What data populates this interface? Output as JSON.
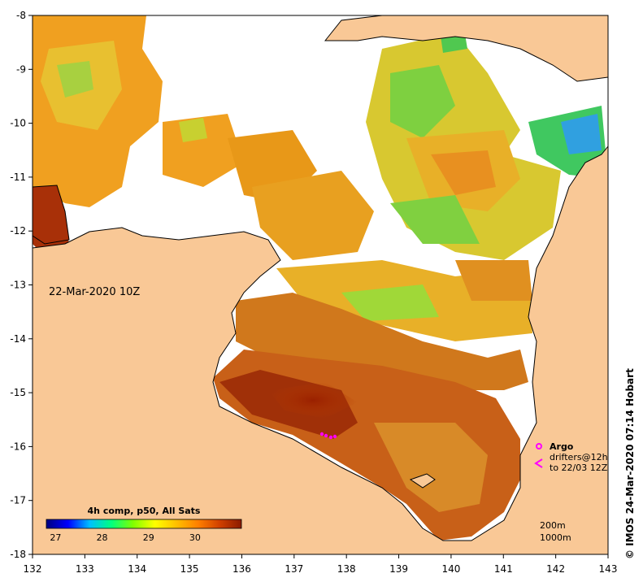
{
  "map": {
    "date_label": "22-Mar-2020 10Z",
    "credit": "©  IMOS 24-Mar-2020 07:14 Hobart",
    "x_ticks": [
      "132",
      "133",
      "134",
      "135",
      "136",
      "137",
      "138",
      "139",
      "140",
      "141",
      "142",
      "143"
    ],
    "y_ticks": [
      "-8",
      "-9",
      "-10",
      "-11",
      "-12",
      "-13",
      "-14",
      "-15",
      "-16",
      "-17",
      "-18"
    ],
    "lon_range": [
      132,
      143
    ],
    "lat_range": [
      -18,
      -8
    ],
    "colorbar": {
      "title": "4h comp, p50, All Sats",
      "ticks": [
        "27",
        "28",
        "29",
        "30"
      ],
      "range": [
        26.8,
        31.0
      ],
      "colors": [
        "#00007f",
        "#0000ff",
        "#00bfff",
        "#00ff7f",
        "#7fff00",
        "#ffff00",
        "#ffbf00",
        "#ff7f00",
        "#d04000",
        "#8b1a00"
      ]
    },
    "legend": {
      "argo": "Argo",
      "drifters_line1": "drifters@12h",
      "drifters_line2": "to 22/03 12Z",
      "depth1": "200m",
      "depth2": "1000m"
    },
    "colors": {
      "land": "#f9c896",
      "ocean_no_data": "#ffffff",
      "argo_marker": "#ff00ff"
    }
  }
}
